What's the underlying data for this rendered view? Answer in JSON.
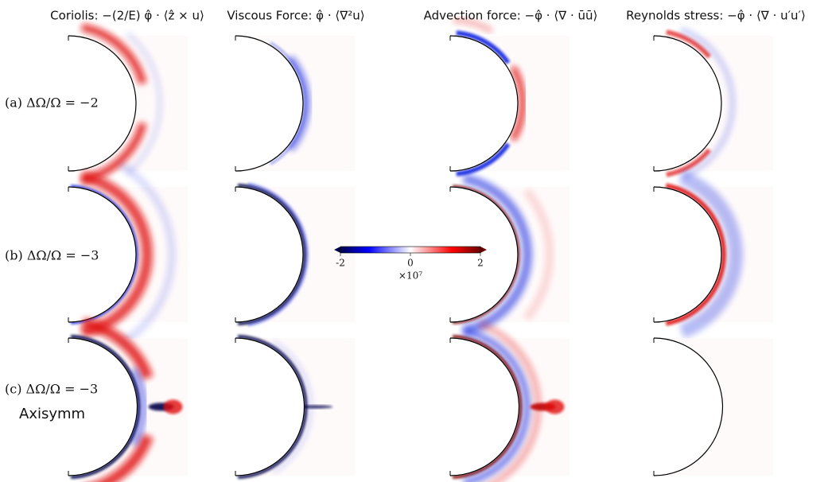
{
  "figure": {
    "columns": [
      "Coriolis: −(2/E) φ̂ · ⟨ẑ × u⟩",
      "Viscous Force: φ̂ · ⟨∇²u⟩",
      "Advection force: −φ̂ · ⟨∇ · ūū⟩",
      "Reynolds stress: −φ̂ · ⟨∇ · u′u′⟩"
    ],
    "rows": [
      "(a) ΔΩ/Ω = −2",
      "(b) ΔΩ/Ω = −3",
      "(c) ΔΩ/Ω = −3"
    ],
    "row_note": "Axisymm",
    "colorbar": {
      "lim": [
        -2,
        2
      ],
      "ticks": [
        -2,
        0,
        2
      ],
      "multiplier": "×10⁷"
    }
  }
}
